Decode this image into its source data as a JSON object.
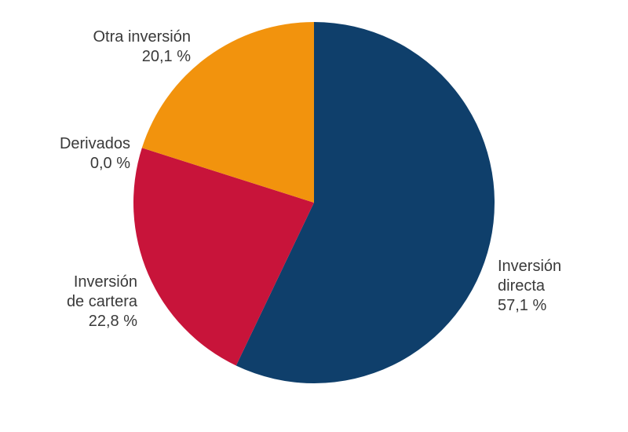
{
  "chart_data": {
    "type": "pie",
    "title": "",
    "slices": [
      {
        "key": "directa",
        "label": [
          "Inversión",
          "directa"
        ],
        "value": 57.1,
        "value_label": "57,1 %",
        "color": "#0f3f6b"
      },
      {
        "key": "cartera",
        "label": [
          "Inversión",
          "de cartera"
        ],
        "value": 22.8,
        "value_label": "22,8 %",
        "color": "#c8143a"
      },
      {
        "key": "derivados",
        "label": [
          "Derivados"
        ],
        "value": 0.0,
        "value_label": "0,0 %",
        "color": "#7a7a7a"
      },
      {
        "key": "otra",
        "label": [
          "Otra inversión"
        ],
        "value": 20.1,
        "value_label": "20,1 %",
        "color": "#f2930d"
      }
    ],
    "start_angle": "12 o'clock",
    "direction": "clockwise",
    "legend": "none; labels placed next to slices"
  }
}
